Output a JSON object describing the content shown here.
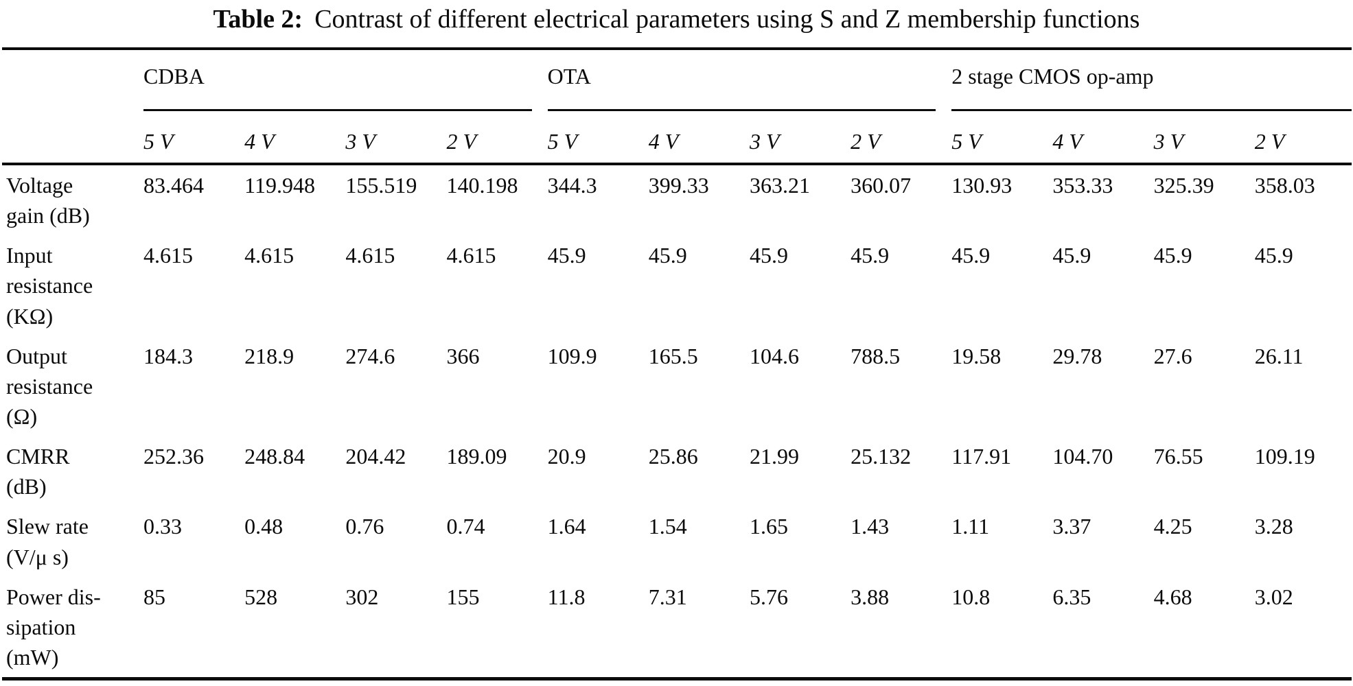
{
  "caption": {
    "label": "Table 2:",
    "text": "Contrast of different electrical parameters using S and Z membership functions"
  },
  "table": {
    "groups": [
      {
        "name": "CDBA",
        "columns": [
          "5 V",
          "4 V",
          "3 V",
          "2 V"
        ]
      },
      {
        "name": "OTA",
        "columns": [
          "5 V",
          "4 V",
          "3 V",
          "2 V"
        ]
      },
      {
        "name": "2 stage CMOS op-amp",
        "columns": [
          "5 V",
          "4 V",
          "3 V",
          "2 V"
        ]
      }
    ],
    "rows": [
      {
        "label": "Voltage\ngain (dB)",
        "values": [
          "83.464",
          "119.948",
          "155.519",
          "140.198",
          "344.3",
          "399.33",
          "363.21",
          "360.07",
          "130.93",
          "353.33",
          "325.39",
          "358.03"
        ]
      },
      {
        "label": "Input\nresistance\n(KΩ)",
        "values": [
          "4.615",
          "4.615",
          "4.615",
          "4.615",
          "45.9",
          "45.9",
          "45.9",
          "45.9",
          "45.9",
          "45.9",
          "45.9",
          "45.9"
        ]
      },
      {
        "label": "Output\nresistance\n(Ω)",
        "values": [
          "184.3",
          "218.9",
          "274.6",
          "366",
          "109.9",
          "165.5",
          "104.6",
          "788.5",
          "19.58",
          "29.78",
          "27.6",
          "26.11"
        ]
      },
      {
        "label": "CMRR\n(dB)",
        "values": [
          "252.36",
          "248.84",
          "204.42",
          "189.09",
          "20.9",
          "25.86",
          "21.99",
          "25.132",
          "117.91",
          "104.70",
          "76.55",
          "109.19"
        ]
      },
      {
        "label": "Slew rate\n(V/μ s)",
        "values": [
          "0.33",
          "0.48",
          "0.76",
          "0.74",
          "1.64",
          "1.54",
          "1.65",
          "1.43",
          "1.11",
          "3.37",
          "4.25",
          "3.28"
        ]
      },
      {
        "label": "Power dis-\nsipation\n(mW)",
        "values": [
          "85",
          "528",
          "302",
          "155",
          "11.8",
          "7.31",
          "5.76",
          "3.88",
          "10.8",
          "6.35",
          "4.68",
          "3.02"
        ]
      }
    ]
  }
}
